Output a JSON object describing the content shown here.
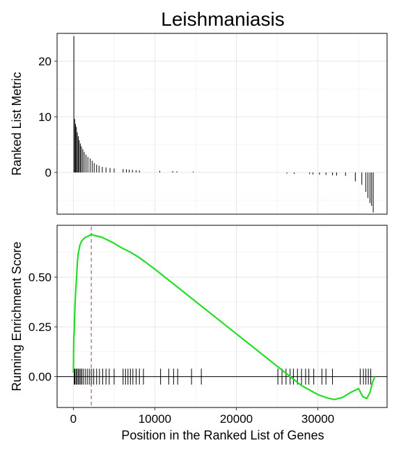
{
  "chart_data": [
    {
      "type": "bar",
      "title": "Leishmaniasis",
      "ylabel": "Ranked List Metric",
      "xlabel": "",
      "xlim": [
        -2000,
        38500
      ],
      "ylim": [
        -7.5,
        25
      ],
      "y_ticks": [
        0,
        10,
        20
      ],
      "y_tick_labels": [
        "0",
        "10",
        "20"
      ],
      "grid": true,
      "bars": [
        {
          "x": 60,
          "value": 24.5
        },
        {
          "x": 160,
          "value": 9.6
        },
        {
          "x": 260,
          "value": 8.7
        },
        {
          "x": 370,
          "value": 8.2
        },
        {
          "x": 480,
          "value": 7.2
        },
        {
          "x": 600,
          "value": 6.5
        },
        {
          "x": 720,
          "value": 5.8
        },
        {
          "x": 850,
          "value": 5.2
        },
        {
          "x": 980,
          "value": 4.7
        },
        {
          "x": 1150,
          "value": 4.2
        },
        {
          "x": 1330,
          "value": 3.7
        },
        {
          "x": 1550,
          "value": 3.2
        },
        {
          "x": 1780,
          "value": 2.8
        },
        {
          "x": 2050,
          "value": 2.5
        },
        {
          "x": 2300,
          "value": 2.1
        },
        {
          "x": 2550,
          "value": 1.7
        },
        {
          "x": 2850,
          "value": 1.4
        },
        {
          "x": 3150,
          "value": 1.2
        },
        {
          "x": 3550,
          "value": 1.0
        },
        {
          "x": 4000,
          "value": 0.9
        },
        {
          "x": 4500,
          "value": 0.8
        },
        {
          "x": 5000,
          "value": 0.7
        },
        {
          "x": 6100,
          "value": 0.6
        },
        {
          "x": 6500,
          "value": 0.55
        },
        {
          "x": 6850,
          "value": 0.5
        },
        {
          "x": 7250,
          "value": 0.45
        },
        {
          "x": 7700,
          "value": 0.4
        },
        {
          "x": 8100,
          "value": 0.35
        },
        {
          "x": 10600,
          "value": 0.3
        },
        {
          "x": 12200,
          "value": 0.25
        },
        {
          "x": 12700,
          "value": 0.2
        },
        {
          "x": 14700,
          "value": 0.15
        },
        {
          "x": 26200,
          "value": -0.2
        },
        {
          "x": 27100,
          "value": -0.25
        },
        {
          "x": 29000,
          "value": -0.3
        },
        {
          "x": 29400,
          "value": -0.35
        },
        {
          "x": 30200,
          "value": -0.4
        },
        {
          "x": 31000,
          "value": -0.45
        },
        {
          "x": 31800,
          "value": -0.5
        },
        {
          "x": 32300,
          "value": -0.55
        },
        {
          "x": 33400,
          "value": -0.6
        },
        {
          "x": 34600,
          "value": -1.6
        },
        {
          "x": 35400,
          "value": -2.2
        },
        {
          "x": 35900,
          "value": -3.5
        },
        {
          "x": 36150,
          "value": -4.6
        },
        {
          "x": 36400,
          "value": -5.5
        },
        {
          "x": 36600,
          "value": -6.0
        },
        {
          "x": 36800,
          "value": -7.2
        }
      ]
    },
    {
      "type": "line",
      "title": "",
      "ylabel": "Running Enrichment Score",
      "xlabel": "Position in the Ranked List of Genes",
      "xlim": [
        -2000,
        38500
      ],
      "ylim": [
        -0.155,
        0.76
      ],
      "x_ticks": [
        0,
        10000,
        20000,
        30000
      ],
      "x_tick_labels": [
        "0",
        "10000",
        "20000",
        "30000"
      ],
      "y_ticks": [
        0,
        0.25,
        0.5
      ],
      "y_tick_labels": [
        "0.00",
        "0.25",
        "0.50"
      ],
      "grid": true,
      "zero_line": 0,
      "peak_x": 2200,
      "series": [
        {
          "color": "#22dd22",
          "x": [
            0,
            50,
            100,
            150,
            200,
            300,
            400,
            500,
            600,
            800,
            1000,
            1200,
            1500,
            1800,
            2000,
            2200,
            2500,
            3000,
            3500,
            4000,
            5000,
            6000,
            7000,
            8000,
            9000,
            10000,
            12000,
            14000,
            16000,
            18000,
            20000,
            22000,
            24000,
            26000,
            28000,
            30000,
            31000,
            32000,
            33000,
            34000,
            35000,
            35500,
            36000,
            36400,
            36700,
            37000
          ],
          "y": [
            0.02,
            0.2,
            0.22,
            0.3,
            0.36,
            0.44,
            0.5,
            0.58,
            0.62,
            0.66,
            0.68,
            0.69,
            0.7,
            0.705,
            0.71,
            0.715,
            0.71,
            0.705,
            0.7,
            0.69,
            0.67,
            0.645,
            0.625,
            0.6,
            0.57,
            0.54,
            0.475,
            0.41,
            0.345,
            0.28,
            0.215,
            0.15,
            0.085,
            0.02,
            -0.045,
            -0.09,
            -0.105,
            -0.115,
            -0.105,
            -0.08,
            -0.06,
            -0.1,
            -0.11,
            -0.08,
            -0.03,
            0.0
          ]
        }
      ],
      "gene_hits": [
        100,
        180,
        320,
        450,
        600,
        750,
        900,
        1050,
        1250,
        1500,
        1750,
        2000,
        2250,
        2500,
        2850,
        3200,
        3600,
        4000,
        4400,
        5000,
        6100,
        6400,
        6700,
        7000,
        7300,
        7700,
        8100,
        8600,
        10700,
        11700,
        12300,
        12800,
        14500,
        15700,
        25100,
        25600,
        26100,
        26600,
        27000,
        27500,
        28000,
        28500,
        28900,
        29500,
        30500,
        31000,
        31800,
        35200,
        35600,
        35900,
        36200,
        36500
      ]
    }
  ]
}
